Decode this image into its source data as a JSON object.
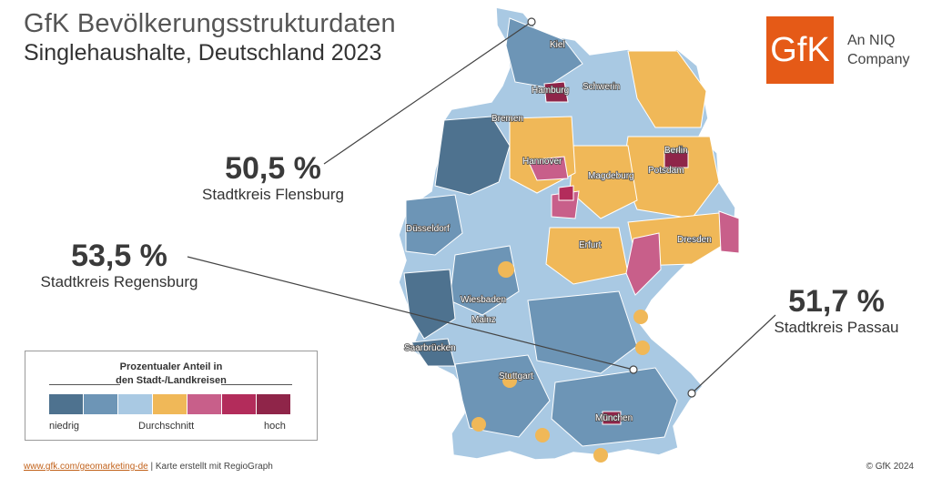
{
  "header": {
    "title": "GfK Bevölkerungsstrukturdaten",
    "subtitle": "Singlehaushalte, Deutschland 2023"
  },
  "logo": {
    "mark": "GfK",
    "line1": "An NIQ",
    "line2": "Company",
    "color": "#e55a17"
  },
  "callouts": [
    {
      "value": "50,5 %",
      "label": "Stadtkreis Flensburg"
    },
    {
      "value": "53,5 %",
      "label": "Stadtkreis Regensburg"
    },
    {
      "value": "51,7 %",
      "label": "Stadtkreis Passau"
    }
  ],
  "cities": [
    "Kiel",
    "Hamburg",
    "Schwerin",
    "Bremen",
    "Berlin",
    "Potsdam",
    "Hannover",
    "Magdeburg",
    "Düsseldorf",
    "Erfurt",
    "Dresden",
    "Wiesbaden",
    "Mainz",
    "Saarbrücken",
    "Stuttgart",
    "München"
  ],
  "legend": {
    "title_line1": "Prozentualer Anteil in",
    "title_line2": "den Stadt-/Landkreisen",
    "low": "niedrig",
    "mid": "Durchschnitt",
    "high": "hoch",
    "colors": [
      "#4e728f",
      "#6d95b6",
      "#a9c9e3",
      "#f0b858",
      "#c85f8a",
      "#b32c5b",
      "#8f2549"
    ]
  },
  "footer": {
    "link": "www.gfk.com/geomarketing-de",
    "text": " | Karte erstellt mit RegioGraph",
    "copyright": "© GfK 2024"
  }
}
